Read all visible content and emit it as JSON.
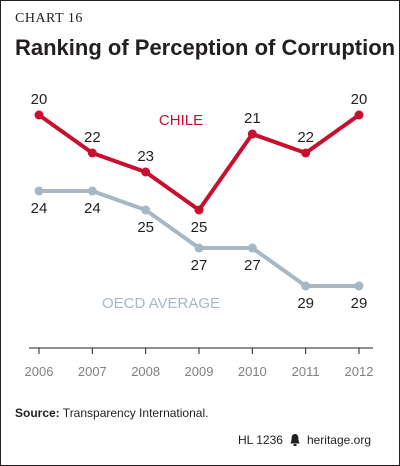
{
  "chart_label": "CHART 16",
  "chart_title": "Ranking of Perception of Corruption",
  "source_label": "Source:",
  "source_text": " Transparency International.",
  "footer": {
    "code": "HL 1236",
    "site": "heritage.org"
  },
  "colors": {
    "chile": "#c8102e",
    "oecd": "#a7b8c4",
    "axis": "#231f20",
    "tick_text": "#808080"
  },
  "chart_data": {
    "type": "line",
    "title": "Ranking of Perception of Corruption",
    "x": [
      "2006",
      "2007",
      "2008",
      "2009",
      "2010",
      "2011",
      "2012"
    ],
    "y_inverted": true,
    "ylim": [
      19,
      31
    ],
    "grid": false,
    "series": [
      {
        "name": "CHILE",
        "values": [
          20,
          22,
          23,
          25,
          21,
          22,
          20
        ],
        "labels": [
          "20",
          "22",
          "23",
          "25",
          "21",
          "22",
          "20"
        ]
      },
      {
        "name": "OECD AVERAGE",
        "values": [
          24,
          24,
          25,
          27,
          27,
          29,
          29
        ],
        "labels": [
          "24",
          "24",
          "25",
          "27",
          "27",
          "29",
          "29"
        ]
      }
    ]
  }
}
